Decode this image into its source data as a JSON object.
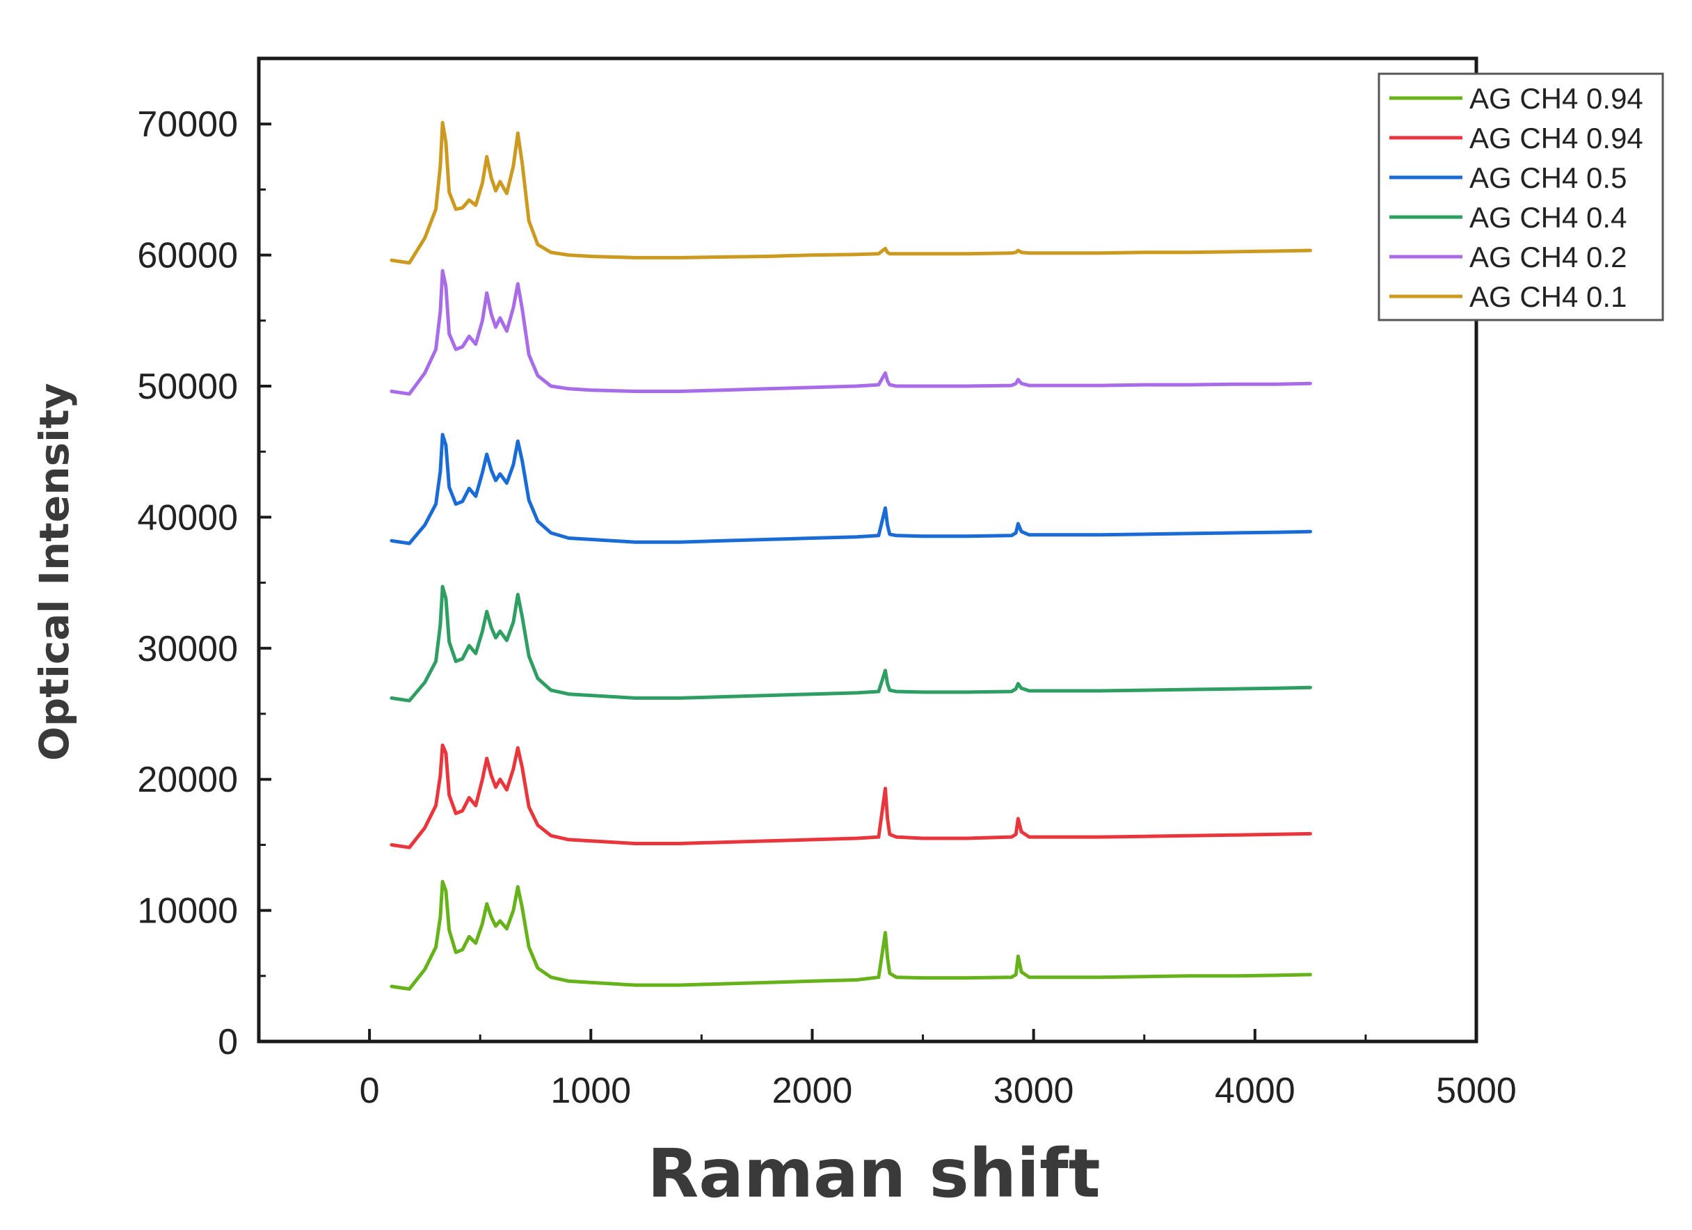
{
  "chart_data": {
    "type": "line",
    "title": "",
    "xlabel": "Raman shift",
    "ylabel": "Optical Intensity",
    "xlim": [
      -500,
      5000
    ],
    "ylim": [
      0,
      75000
    ],
    "x_ticks": [
      0,
      1000,
      2000,
      3000,
      4000,
      5000
    ],
    "y_ticks": [
      0,
      10000,
      20000,
      30000,
      40000,
      50000,
      60000,
      70000
    ],
    "grid": false,
    "legend_position": "top-right",
    "x": [
      100,
      180,
      250,
      300,
      320,
      330,
      345,
      360,
      390,
      420,
      450,
      480,
      510,
      530,
      550,
      570,
      590,
      620,
      650,
      670,
      690,
      720,
      760,
      820,
      900,
      1000,
      1200,
      1400,
      1600,
      1800,
      2000,
      2200,
      2300,
      2330,
      2340,
      2350,
      2380,
      2500,
      2700,
      2900,
      2920,
      2930,
      2945,
      2980,
      3100,
      3300,
      3500,
      3700,
      3900,
      4100,
      4250
    ],
    "series": [
      {
        "name": "AG CH4 0.94",
        "color": "#66b21a",
        "values": [
          4200,
          4000,
          5500,
          7200,
          9500,
          12200,
          11500,
          8500,
          6800,
          7000,
          8000,
          7500,
          9000,
          10500,
          9500,
          8800,
          9200,
          8600,
          10000,
          11800,
          10200,
          7200,
          5600,
          4900,
          4600,
          4500,
          4300,
          4300,
          4400,
          4500,
          4600,
          4700,
          4900,
          8300,
          6400,
          5200,
          4900,
          4850,
          4850,
          4900,
          5100,
          6500,
          5300,
          4900,
          4900,
          4900,
          4950,
          5000,
          5000,
          5050,
          5100
        ]
      },
      {
        "name": "AG CH4 0.94",
        "color": "#e8363c",
        "values": [
          15000,
          14800,
          16300,
          18000,
          20300,
          22600,
          22000,
          18800,
          17400,
          17600,
          18600,
          18000,
          20000,
          21600,
          20300,
          19400,
          20000,
          19200,
          20800,
          22400,
          20900,
          17900,
          16500,
          15700,
          15400,
          15300,
          15100,
          15100,
          15200,
          15300,
          15400,
          15500,
          15600,
          19300,
          17000,
          15800,
          15600,
          15500,
          15500,
          15600,
          15800,
          17000,
          16000,
          15600,
          15600,
          15600,
          15650,
          15700,
          15750,
          15800,
          15850
        ]
      },
      {
        "name": "AG CH4 0.5",
        "color": "#1a6bd6",
        "values": [
          38200,
          38000,
          39400,
          41000,
          43500,
          46300,
          45500,
          42300,
          41000,
          41200,
          42200,
          41600,
          43400,
          44800,
          43600,
          42800,
          43300,
          42600,
          44000,
          45800,
          44300,
          41300,
          39700,
          38800,
          38400,
          38300,
          38100,
          38100,
          38200,
          38300,
          38400,
          38500,
          38600,
          40700,
          39400,
          38700,
          38600,
          38550,
          38550,
          38600,
          38800,
          39500,
          38900,
          38650,
          38650,
          38650,
          38700,
          38750,
          38800,
          38850,
          38900
        ]
      },
      {
        "name": "AG CH4 0.4",
        "color": "#2e9e62",
        "values": [
          26200,
          26000,
          27400,
          29000,
          31800,
          34700,
          33800,
          30500,
          29000,
          29200,
          30200,
          29600,
          31300,
          32800,
          31600,
          30800,
          31300,
          30600,
          32000,
          34100,
          32400,
          29400,
          27700,
          26800,
          26500,
          26400,
          26200,
          26200,
          26300,
          26400,
          26500,
          26600,
          26700,
          28300,
          27300,
          26800,
          26700,
          26650,
          26650,
          26700,
          26900,
          27300,
          26950,
          26750,
          26750,
          26750,
          26800,
          26850,
          26900,
          26950,
          27000
        ]
      },
      {
        "name": "AG CH4 0.2",
        "color": "#a86ce8",
        "values": [
          49600,
          49400,
          51000,
          52800,
          55700,
          58800,
          57600,
          54000,
          52800,
          53000,
          53800,
          53200,
          55000,
          57100,
          55500,
          54500,
          55200,
          54200,
          56000,
          57800,
          55900,
          52400,
          50800,
          50000,
          49800,
          49700,
          49600,
          49600,
          49700,
          49800,
          49900,
          50000,
          50100,
          51000,
          50400,
          50100,
          50000,
          50000,
          50000,
          50050,
          50200,
          50500,
          50200,
          50050,
          50050,
          50050,
          50100,
          50100,
          50150,
          50150,
          50200
        ]
      },
      {
        "name": "AG CH4 0.1",
        "color": "#cc9a1f",
        "values": [
          59600,
          59400,
          61300,
          63500,
          66800,
          70100,
          68600,
          64800,
          63500,
          63600,
          64200,
          63800,
          65500,
          67500,
          65900,
          64900,
          65600,
          64700,
          66800,
          69300,
          67000,
          62600,
          60800,
          60200,
          60000,
          59900,
          59800,
          59800,
          59850,
          59900,
          60000,
          60050,
          60100,
          60500,
          60200,
          60100,
          60100,
          60100,
          60100,
          60150,
          60200,
          60350,
          60200,
          60150,
          60150,
          60150,
          60200,
          60200,
          60250,
          60300,
          60350
        ]
      }
    ]
  }
}
